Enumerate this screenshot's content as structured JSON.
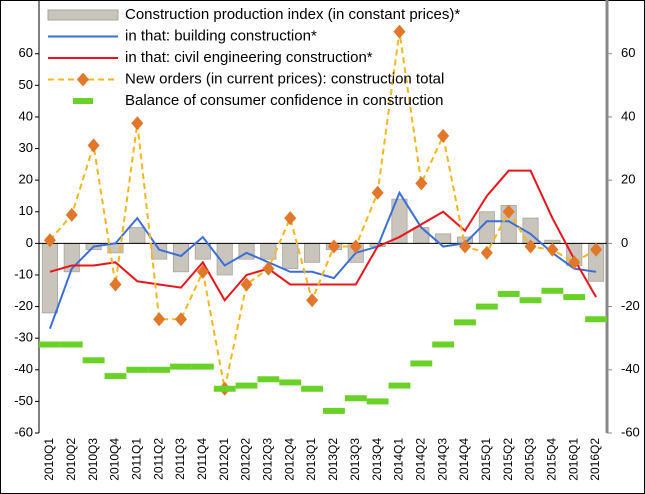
{
  "chart_data": {
    "type": "combo",
    "categories": [
      "2010Q1",
      "2010Q2",
      "2010Q3",
      "2010Q4",
      "2011Q1",
      "2011Q2",
      "2011Q3",
      "2011Q4",
      "2012Q1",
      "2012Q2",
      "2012Q3",
      "2012Q4",
      "2013Q1",
      "2013Q2",
      "2013Q3",
      "2013Q4",
      "2014Q1",
      "2014Q2",
      "2014Q3",
      "2014Q4",
      "2015Q1",
      "2015Q2",
      "2015Q3",
      "2015Q4",
      "2016Q1",
      "2016Q2"
    ],
    "series": [
      {
        "name": "Construction production index (in constant prices)*",
        "style": "bar",
        "color": "#c9c5bc",
        "values": [
          -22,
          -9,
          -2,
          -3,
          5,
          -5,
          -9,
          -5,
          -10,
          -5,
          -5,
          -8,
          -6,
          -2,
          -6,
          -1,
          14,
          5,
          3,
          2,
          10,
          12,
          8,
          1,
          -7,
          -12
        ]
      },
      {
        "name": "in that: building construction*",
        "style": "line",
        "color": "#3a6fd8",
        "values": [
          -27,
          -8,
          -1,
          0,
          8,
          -2,
          -4,
          2,
          -7,
          -3,
          -6,
          -9,
          -9,
          -11,
          -3,
          -1,
          16,
          5,
          -1,
          0,
          7,
          7,
          3,
          -3,
          -8,
          -9
        ]
      },
      {
        "name": "in that: civil engineering construction*",
        "style": "line",
        "color": "#e8161b",
        "values": [
          -9,
          -7,
          -7,
          -6,
          -12,
          -13,
          -14,
          -6,
          -18,
          -10,
          -8,
          -13,
          -13,
          -13,
          -13,
          -1,
          2,
          6,
          10,
          4,
          15,
          23,
          23,
          8,
          -5,
          -17
        ]
      },
      {
        "name": "New orders (in current prices): construction total",
        "style": "dashed-marker",
        "axis": "y2",
        "color": "#f6b61e",
        "marker_color": "#e0772a",
        "values": [
          1,
          9,
          31,
          -13,
          38,
          -24,
          -24,
          -9,
          -46,
          -13,
          -8,
          8,
          -18,
          -1,
          -1,
          16,
          67,
          19,
          34,
          -1,
          -3,
          10,
          -1,
          -2,
          -6,
          -2
        ]
      },
      {
        "name": "Balance of consumer confidence in construction",
        "style": "dash",
        "axis": "y2",
        "color": "#6ad126",
        "values": [
          -32,
          -32,
          -37,
          -42,
          -40,
          -40,
          -39,
          -39,
          -46,
          -45,
          -43,
          -44,
          -46,
          -53,
          -49,
          -50,
          -45,
          -38,
          -32,
          -25,
          -20,
          -16,
          -18,
          -15,
          -17,
          -24
        ]
      }
    ],
    "ylim": [
      -60,
      77
    ],
    "yticks": [
      -60,
      -50,
      -40,
      -30,
      -20,
      -10,
      0,
      10,
      20,
      30,
      40,
      50,
      60
    ],
    "y2lim": [
      -60,
      77
    ],
    "y2ticks": [
      -60,
      -40,
      -20,
      0,
      20,
      40,
      60
    ],
    "legend": "top-left"
  }
}
